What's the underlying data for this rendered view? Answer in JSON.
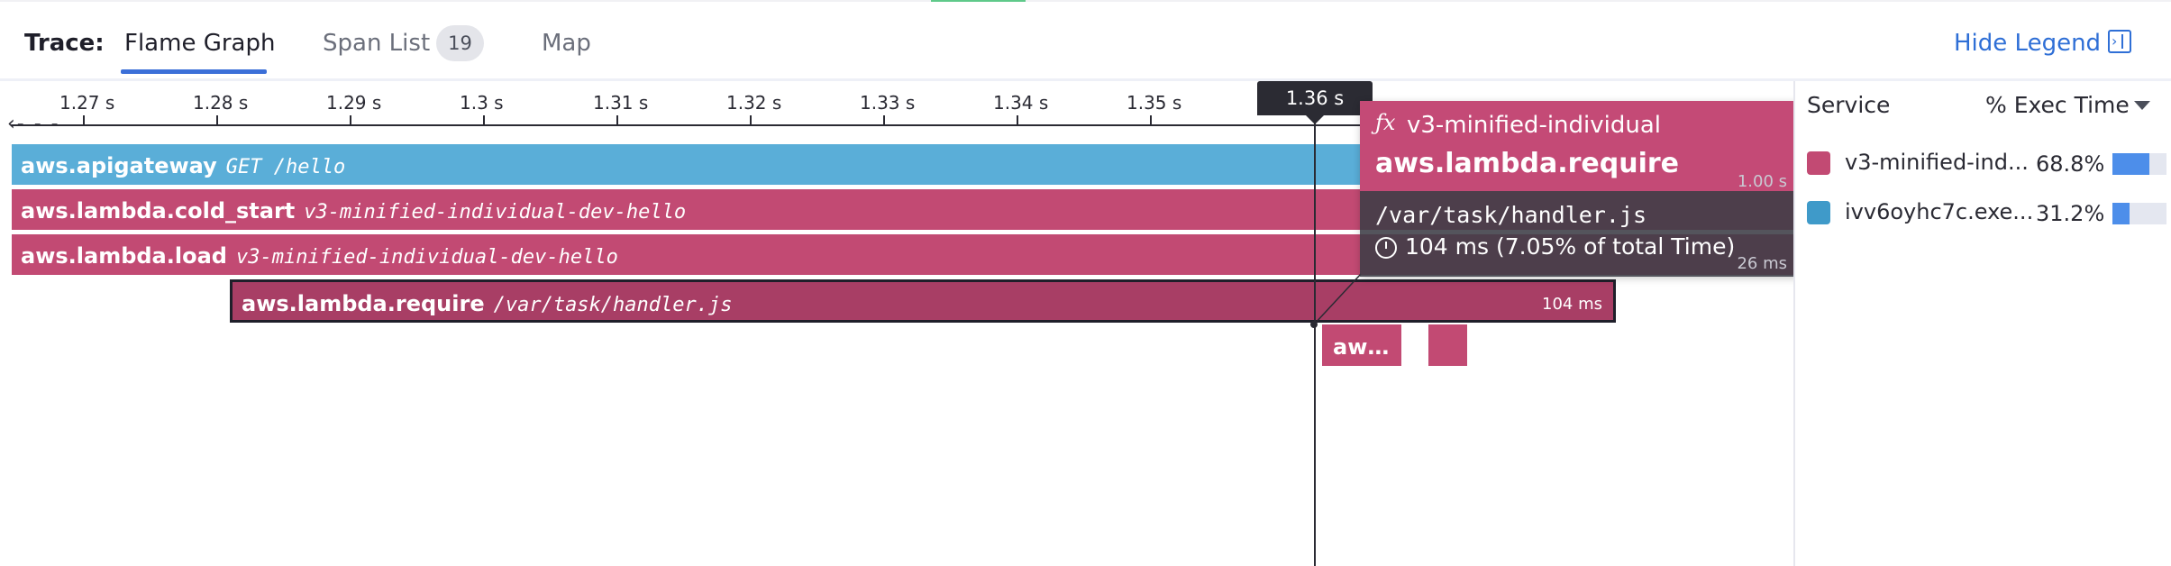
{
  "header": {
    "trace_label": "Trace:",
    "tabs": [
      {
        "label": "Flame Graph",
        "active": true
      },
      {
        "label": "Span List",
        "badge": "19"
      },
      {
        "label": "Map"
      }
    ],
    "hide_legend": "Hide Legend"
  },
  "axis": {
    "ticks": [
      "1.27 s",
      "1.28 s",
      "1.29 s",
      "1.3 s",
      "1.31 s",
      "1.32 s",
      "1.33 s",
      "1.34 s",
      "1.35 s"
    ],
    "cursor_label": "1.36 s"
  },
  "spans": [
    {
      "name": "aws.apigateway",
      "resource": "GET /hello",
      "color": "#5aaed8"
    },
    {
      "name": "aws.lambda.cold_start",
      "resource": "v3-minified-individual-dev-hello",
      "color": "#c24a73"
    },
    {
      "name": "aws.lambda.load",
      "resource": "v3-minified-individual-dev-hello",
      "color": "#c24a73"
    },
    {
      "name": "aws.lambda.require",
      "resource": "/var/task/handler.js",
      "duration": "104 ms",
      "color": "#a83e65"
    }
  ],
  "small_spans": [
    {
      "label": "aw…"
    }
  ],
  "tooltip": {
    "fx": "ƒx",
    "service": "v3-minified-individual",
    "operation": "aws.lambda.require",
    "resource": "/var/task/handler.js",
    "time": "104 ms (7.05% of total Time)",
    "faded_1": "1.00 s",
    "faded_2": "26 ms"
  },
  "legend": {
    "col_service": "Service",
    "col_exec": "% Exec Time",
    "rows": [
      {
        "name": "v3-minified-ind...",
        "pct": "68.8%",
        "value": 0.688,
        "color": "#c24a73"
      },
      {
        "name": "ivv6oyhc7c.exe...",
        "pct": "31.2%",
        "value": 0.312,
        "color": "#3f9ac9"
      }
    ]
  }
}
